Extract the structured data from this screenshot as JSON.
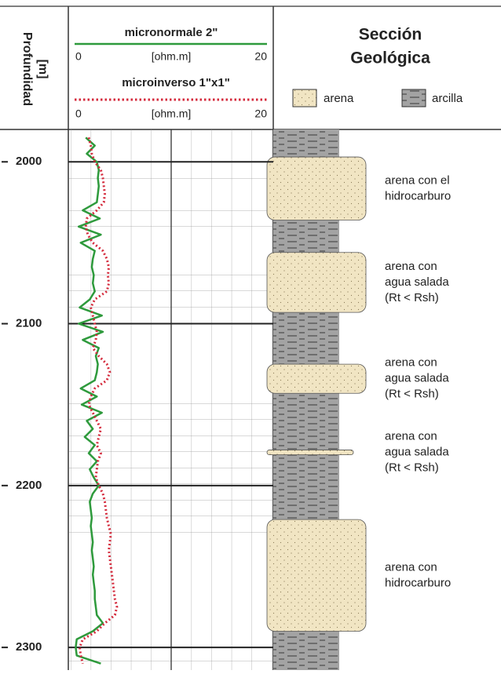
{
  "chart_data": {
    "type": "line",
    "depth_label": [
      "Profundidad",
      "[m]"
    ],
    "ylim": [
      1980,
      2314
    ],
    "yticks": [
      2000,
      2100,
      2200,
      2300
    ],
    "xlim": [
      0,
      20
    ],
    "x_unit": "[ohm.m]",
    "y": [
      1985,
      1990,
      1995,
      2000,
      2005,
      2010,
      2015,
      2020,
      2025,
      2030,
      2035,
      2040,
      2045,
      2050,
      2055,
      2060,
      2065,
      2070,
      2075,
      2080,
      2085,
      2090,
      2095,
      2100,
      2105,
      2110,
      2115,
      2120,
      2125,
      2130,
      2135,
      2140,
      2145,
      2150,
      2155,
      2160,
      2165,
      2170,
      2175,
      2180,
      2185,
      2190,
      2195,
      2200,
      2205,
      2210,
      2215,
      2220,
      2225,
      2230,
      2235,
      2240,
      2245,
      2250,
      2255,
      2260,
      2265,
      2270,
      2275,
      2280,
      2285,
      2290,
      2295,
      2300,
      2305,
      2310
    ],
    "series": [
      {
        "name": "micronormale 2\"",
        "color": "#2e9a3c",
        "style": "solid",
        "values": [
          1.5,
          2.4,
          1.6,
          2.6,
          2.8,
          2.7,
          2.8,
          2.7,
          2.6,
          1.2,
          2.9,
          0.8,
          3.0,
          1.0,
          2.4,
          2.2,
          2.1,
          2.3,
          2.2,
          2.4,
          1.9,
          0.9,
          3.1,
          0.8,
          3.2,
          1.2,
          2.8,
          2.5,
          2.7,
          2.6,
          2.4,
          1.0,
          2.6,
          1.1,
          3.1,
          1.6,
          2.2,
          1.4,
          2.4,
          1.8,
          2.6,
          1.9,
          2.3,
          2.8,
          2.2,
          1.9,
          2.0,
          2.1,
          2.0,
          2.1,
          2.2,
          2.1,
          2.2,
          2.3,
          2.2,
          2.3,
          2.4,
          2.4,
          2.5,
          2.6,
          3.2,
          2.2,
          0.6,
          0.5,
          0.6,
          3.0
        ]
      },
      {
        "name": "microinverso 1\"x1\"",
        "color": "#d42a3c",
        "style": "dotted",
        "values": [
          1.8,
          2.0,
          2.1,
          2.4,
          3.0,
          3.2,
          3.3,
          3.4,
          3.3,
          2.6,
          1.6,
          1.5,
          1.7,
          2.2,
          3.2,
          3.6,
          3.8,
          3.7,
          3.8,
          3.6,
          2.4,
          2.0,
          2.2,
          2.4,
          2.6,
          2.5,
          2.2,
          2.8,
          3.6,
          3.9,
          3.6,
          2.4,
          2.0,
          1.8,
          2.2,
          2.6,
          3.0,
          2.8,
          2.6,
          3.0,
          2.7,
          2.6,
          2.5,
          2.8,
          3.2,
          3.4,
          3.5,
          3.6,
          3.8,
          4.0,
          3.9,
          3.8,
          3.9,
          4.0,
          4.1,
          4.2,
          4.3,
          4.4,
          4.6,
          4.4,
          3.4,
          2.6,
          1.2,
          0.9,
          1.0,
          1.2
        ]
      }
    ],
    "section": {
      "title": [
        "Sección",
        "Geológica"
      ],
      "legend": [
        "arena",
        "arcilla"
      ],
      "sand": [
        {
          "top": 1997,
          "bottom": 2036,
          "label": [
            "arena con el",
            "hidrocarburo"
          ]
        },
        {
          "top": 2056,
          "bottom": 2093,
          "label": [
            "arena con",
            "agua salada",
            "(Rt < Rsh)"
          ]
        },
        {
          "top": 2125,
          "bottom": 2143,
          "label": [
            "arena con",
            "agua salada",
            "(Rt < Rsh)"
          ]
        },
        {
          "top": 2178,
          "bottom": 2181,
          "label": [
            "arena con",
            "agua salada",
            "(Rt < Rsh)"
          ]
        },
        {
          "top": 2221,
          "bottom": 2290,
          "label": [
            "arena con",
            "hidrocarburo"
          ]
        }
      ],
      "clay": [
        [
          1980,
          1997
        ],
        [
          2036,
          2056
        ],
        [
          2093,
          2125
        ],
        [
          2143,
          2178
        ],
        [
          2181,
          2221
        ],
        [
          2290,
          2314
        ]
      ]
    }
  }
}
